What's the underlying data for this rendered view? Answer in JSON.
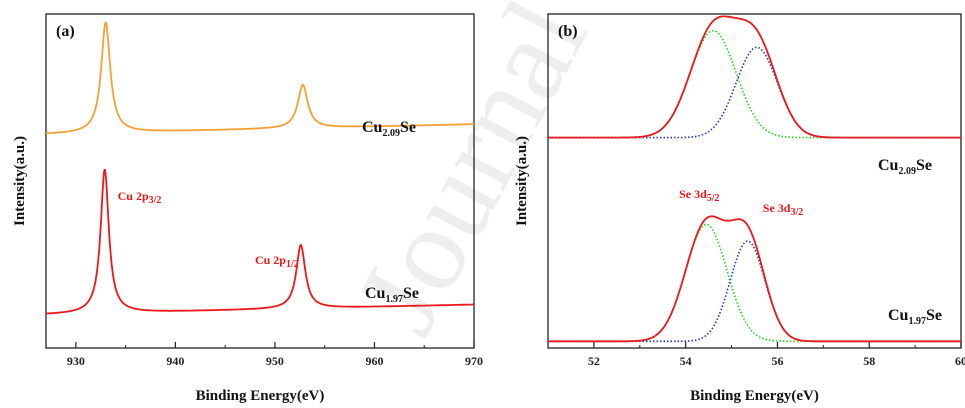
{
  "colors": {
    "orange": "#f5a035",
    "red": "#e8191d",
    "green": "#1fd41f",
    "blue": "#1a35c8",
    "annotation": "#e8191d"
  },
  "watermark": "Journal",
  "chart_data": [
    {
      "type": "line",
      "panel_label": "(a)",
      "xlabel": "Binding Energy(eV)",
      "ylabel": "Intensity(a.u.)",
      "xlim": [
        927,
        970
      ],
      "xticks": [
        930,
        940,
        950,
        960,
        970
      ],
      "grid": false,
      "series": [
        {
          "label_base": "Cu",
          "label_sub": "2.09",
          "label_tail": "Se",
          "color": "orange",
          "baseline": 0.64,
          "slope": 0.003,
          "peaks": [
            {
              "center": 933.0,
              "width": 0.55,
              "height": 0.33
            },
            {
              "center": 952.8,
              "width": 0.6,
              "height": 0.13
            }
          ]
        },
        {
          "label_base": "Cu",
          "label_sub": "1.97",
          "label_tail": "Se",
          "color": "red",
          "baseline": 0.1,
          "slope": 0.003,
          "peaks": [
            {
              "center": 932.9,
              "width": 0.5,
              "height": 0.43
            },
            {
              "center": 952.6,
              "width": 0.55,
              "height": 0.19
            }
          ]
        }
      ],
      "annotations": [
        {
          "base": "Cu 2p",
          "sub": "3/2",
          "x": 935.2
        },
        {
          "base": "Cu 2p",
          "sub": "1/2",
          "x": 949.2
        }
      ]
    },
    {
      "type": "line",
      "panel_label": "(b)",
      "xlabel": "Binding Energy(eV)",
      "ylabel": "Intensity(a.u.)",
      "xlim": [
        51,
        60
      ],
      "xticks": [
        52,
        54,
        56,
        58,
        60
      ],
      "grid": false,
      "series": [
        {
          "label_base": "Cu",
          "label_sub": "2.09",
          "label_tail": "Se",
          "baseline": 0.63,
          "fit_components": [
            {
              "color": "green",
              "center": 54.6,
              "sigma": 0.5,
              "height": 0.32
            },
            {
              "color": "blue",
              "center": 55.55,
              "sigma": 0.45,
              "height": 0.27
            }
          ],
          "envelope_color": "red"
        },
        {
          "label_base": "Cu",
          "label_sub": "1.97",
          "label_tail": "Se",
          "baseline": 0.02,
          "fit_components": [
            {
              "color": "green",
              "center": 54.45,
              "sigma": 0.45,
              "height": 0.35
            },
            {
              "color": "blue",
              "center": 55.35,
              "sigma": 0.38,
              "height": 0.3
            }
          ],
          "envelope_color": "red"
        }
      ],
      "annotations": [
        {
          "base": "Se 3d",
          "sub": "5/2",
          "x": 53.9
        },
        {
          "base": "Se 3d",
          "sub": "3/2",
          "x": 55.55
        }
      ]
    }
  ]
}
